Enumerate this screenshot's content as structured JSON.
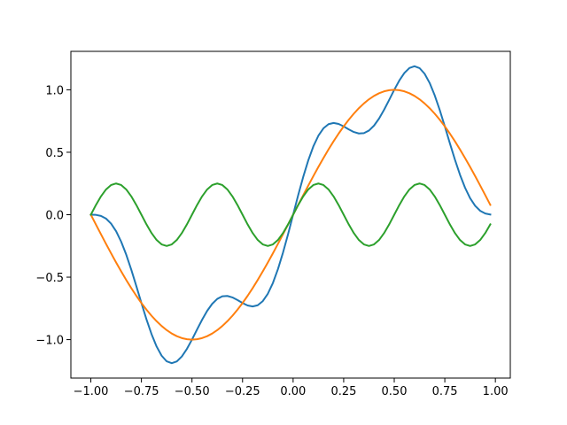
{
  "chart_data": {
    "type": "line",
    "x": [
      -1,
      -0.975,
      -0.95,
      -0.925,
      -0.9,
      -0.875,
      -0.85,
      -0.825,
      -0.8,
      -0.775,
      -0.75,
      -0.725,
      -0.7,
      -0.675,
      -0.65,
      -0.625,
      -0.6,
      -0.575,
      -0.55,
      -0.525,
      -0.5,
      -0.475,
      -0.45,
      -0.425,
      -0.4,
      -0.375,
      -0.35,
      -0.325,
      -0.3,
      -0.275,
      -0.25,
      -0.225,
      -0.2,
      -0.175,
      -0.15,
      -0.125,
      -0.1,
      -0.075,
      -0.05,
      -0.025,
      0,
      0.025,
      0.05,
      0.075,
      0.1,
      0.125,
      0.15,
      0.175,
      0.2,
      0.225,
      0.25,
      0.275,
      0.3,
      0.325,
      0.35,
      0.375,
      0.4,
      0.425,
      0.45,
      0.475,
      0.5,
      0.525,
      0.55,
      0.575,
      0.6,
      0.625,
      0.65,
      0.675,
      0.7,
      0.725,
      0.75,
      0.775,
      0.8,
      0.825,
      0.85,
      0.875,
      0.9,
      0.925,
      0.95,
      0.975
    ],
    "series": [
      {
        "color": "#1f77b4",
        "values": [
          0,
          -0.0012,
          -0.0095,
          -0.0311,
          -0.0712,
          -0.1327,
          -0.2162,
          -0.3202,
          -0.4409,
          -0.5721,
          -0.7071,
          -0.8377,
          -0.9559,
          -1.0549,
          -1.1288,
          -1.1739,
          -1.1889,
          -1.1747,
          -1.1346,
          -1.0742,
          -1,
          -0.9196,
          -0.8408,
          -0.7701,
          -0.7133,
          -0.6739,
          -0.6532,
          -0.6503,
          -0.6621,
          -0.6831,
          -0.7071,
          -0.7267,
          -0.7347,
          -0.7248,
          -0.6918,
          -0.6327,
          -0.5468,
          -0.4357,
          -0.3033,
          -0.1558,
          0,
          0.1558,
          0.3033,
          0.4357,
          0.5468,
          0.6327,
          0.6918,
          0.7248,
          0.7347,
          0.7267,
          0.7071,
          0.6831,
          0.6621,
          0.6503,
          0.6532,
          0.6739,
          0.7133,
          0.7701,
          0.8408,
          0.9196,
          1,
          1.0742,
          1.1346,
          1.1747,
          1.1889,
          1.1739,
          1.1288,
          1.0549,
          0.9559,
          0.8377,
          0.7071,
          0.5721,
          0.4409,
          0.3202,
          0.2162,
          0.1327,
          0.0712,
          0.0311,
          0.0095,
          0.0012
        ]
      },
      {
        "color": "#ff7f0e",
        "values": [
          0,
          -0.0785,
          -0.1564,
          -0.2334,
          -0.309,
          -0.3827,
          -0.454,
          -0.5225,
          -0.5878,
          -0.6494,
          -0.7071,
          -0.7604,
          -0.809,
          -0.8526,
          -0.891,
          -0.9239,
          -0.9511,
          -0.9724,
          -0.9877,
          -0.9969,
          -1,
          -0.9969,
          -0.9877,
          -0.9724,
          -0.9511,
          -0.9239,
          -0.891,
          -0.8526,
          -0.809,
          -0.7604,
          -0.7071,
          -0.6494,
          -0.5878,
          -0.5225,
          -0.454,
          -0.3827,
          -0.309,
          -0.2334,
          -0.1564,
          -0.0785,
          0,
          0.0785,
          0.1564,
          0.2334,
          0.309,
          0.3827,
          0.454,
          0.5225,
          0.5878,
          0.6494,
          0.7071,
          0.7604,
          0.809,
          0.8526,
          0.891,
          0.9239,
          0.9511,
          0.9724,
          0.9877,
          0.9969,
          1,
          0.9969,
          0.9877,
          0.9724,
          0.9511,
          0.9239,
          0.891,
          0.8526,
          0.809,
          0.7604,
          0.7071,
          0.6494,
          0.5878,
          0.5225,
          0.454,
          0.3827,
          0.309,
          0.2334,
          0.1564,
          0.0785
        ]
      },
      {
        "color": "#2ca02c",
        "values": [
          0,
          0.0773,
          0.1469,
          0.2023,
          0.2378,
          0.25,
          0.2378,
          0.2023,
          0.1469,
          0.0773,
          0,
          -0.0773,
          -0.1469,
          -0.2023,
          -0.2378,
          -0.25,
          -0.2378,
          -0.2023,
          -0.1469,
          -0.0773,
          0,
          0.0773,
          0.1469,
          0.2023,
          0.2378,
          0.25,
          0.2378,
          0.2023,
          0.1469,
          0.0773,
          0,
          -0.0773,
          -0.1469,
          -0.2023,
          -0.2378,
          -0.25,
          -0.2378,
          -0.2023,
          -0.1469,
          -0.0773,
          0,
          0.0773,
          0.1469,
          0.2023,
          0.2378,
          0.25,
          0.2378,
          0.2023,
          0.1469,
          0.0773,
          0,
          -0.0773,
          -0.1469,
          -0.2023,
          -0.2378,
          -0.25,
          -0.2378,
          -0.2023,
          -0.1469,
          -0.0773,
          0,
          0.0773,
          0.1469,
          0.2023,
          0.2378,
          0.25,
          0.2378,
          0.2023,
          0.1469,
          0.0773,
          0,
          -0.0773,
          -0.1469,
          -0.2023,
          -0.2378,
          -0.25,
          -0.2378,
          -0.2023,
          -0.1469,
          -0.0773
        ]
      }
    ],
    "xlim": [
      -1.09875,
      1.07375
    ],
    "xticks": [
      {
        "value": -1,
        "label": "−1.00"
      },
      {
        "value": -0.75,
        "label": "−0.75"
      },
      {
        "value": -0.5,
        "label": "−0.50"
      },
      {
        "value": -0.25,
        "label": "−0.25"
      },
      {
        "value": 0,
        "label": "0.00"
      },
      {
        "value": 0.25,
        "label": "0.25"
      },
      {
        "value": 0.5,
        "label": "0.50"
      },
      {
        "value": 0.75,
        "label": "0.75"
      },
      {
        "value": 1,
        "label": "1.00"
      }
    ],
    "ylim": [
      -1.3078,
      1.3078
    ],
    "yticks": [
      {
        "value": -1,
        "label": "−1.0"
      },
      {
        "value": -0.5,
        "label": "−0.5"
      },
      {
        "value": 0,
        "label": "0.0"
      },
      0.5,
      {
        "value": 1,
        "label": "1.0"
      }
    ],
    "grid": false
  }
}
